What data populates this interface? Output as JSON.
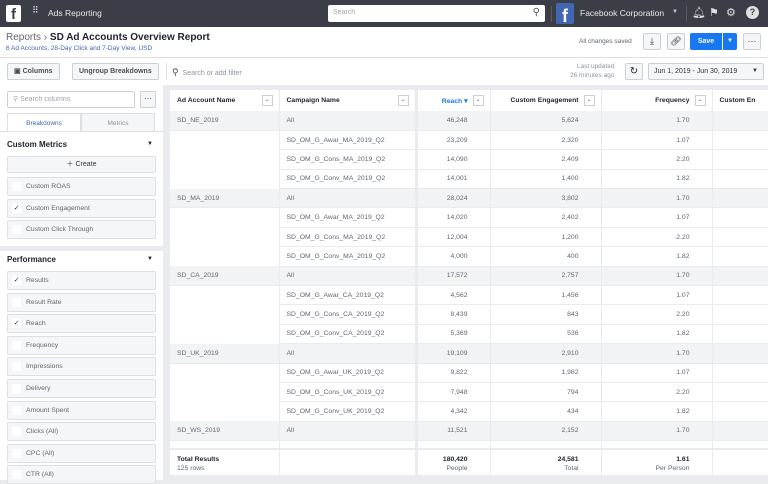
{
  "topbar": {
    "app_title": "Ads Reporting",
    "search_placeholder": "Search",
    "account": "Facebook Corporation"
  },
  "header": {
    "breadcrumb_root": "Reports",
    "title": "SD Ad Accounts Overview Report",
    "subtitle": "6 Ad Accounts, 28-Day Click and 7-Day View, USD",
    "status": "All changes saved",
    "save_label": "Save"
  },
  "toolbar": {
    "columns_label": "Columns",
    "ungroup_label": "Ungroup Breakdowns",
    "filter_placeholder": "Search or add filter",
    "last_updated_1": "Last updated",
    "last_updated_2": "26 minutes ago",
    "date_range": "Jun 1, 2019 - Jun 30, 2019"
  },
  "sidebar": {
    "search_placeholder": "Search columns",
    "tabs": [
      "Breakdowns",
      "Metrics"
    ],
    "active_tab": "Breakdowns",
    "custom_metrics": {
      "title": "Custom Metrics",
      "create_label": "Create",
      "items": [
        {
          "label": "Custom ROAS",
          "checked": false
        },
        {
          "label": "Custom Engagement",
          "checked": true
        },
        {
          "label": "Custom Click Through",
          "checked": false
        }
      ]
    },
    "performance": {
      "title": "Performance",
      "items": [
        {
          "label": "Results",
          "checked": true
        },
        {
          "label": "Result Rate",
          "checked": false
        },
        {
          "label": "Reach",
          "checked": true
        },
        {
          "label": "Frequency",
          "checked": false
        },
        {
          "label": "Impressions",
          "checked": false
        },
        {
          "label": "Delivery",
          "checked": false
        },
        {
          "label": "Amount Spent",
          "checked": false
        },
        {
          "label": "Clicks (All)",
          "checked": false
        },
        {
          "label": "CPC (All)",
          "checked": false
        },
        {
          "label": "CTR (All)",
          "checked": false
        }
      ]
    }
  },
  "table": {
    "columns": [
      "Ad Account Name",
      "Campaign Name",
      "Reach",
      "Custom Engagement",
      "Frequency",
      "Custom En"
    ],
    "sort_column": "Reach",
    "rows": [
      [
        "SD_NE_2019",
        "All",
        "46,248",
        "5,624",
        "1.70"
      ],
      [
        "",
        "SD_OM_G_Awar_MA_2019_Q2",
        "23,209",
        "2,320",
        "1.07"
      ],
      [
        "",
        "SD_OM_G_Cons_MA_2019_Q2",
        "14,090",
        "2,409",
        "2.20"
      ],
      [
        "",
        "SD_OM_G_Conv_MA_2019_Q2",
        "14,001",
        "1,400",
        "1.82"
      ],
      [
        "SD_MA_2019",
        "All",
        "28,024",
        "3,802",
        "1.70"
      ],
      [
        "",
        "SD_OM_G_Awar_MA_2019_Q2",
        "14,020",
        "2,402",
        "1.07"
      ],
      [
        "",
        "SD_OM_G_Cons_MA_2019_Q2",
        "12,004",
        "1,200",
        "2.20"
      ],
      [
        "",
        "SD_OM_G_Conv_MA_2019_Q2",
        "4,000",
        "400",
        "1.82"
      ],
      [
        "SD_CA_2019",
        "All",
        "17,572",
        "2,757",
        "1.70"
      ],
      [
        "",
        "SD_OM_G_Awar_CA_2019_Q2",
        "4,562",
        "1,456",
        "1.07"
      ],
      [
        "",
        "SD_OM_G_Cons_CA_2019_Q2",
        "8,439",
        "843",
        "2.20"
      ],
      [
        "",
        "SD_OM_G_Conv_CA_2019_Q2",
        "5,369",
        "536",
        "1.82"
      ],
      [
        "SD_UK_2019",
        "All",
        "19,109",
        "2,910",
        "1.70"
      ],
      [
        "",
        "SD_OM_G_Awar_UK_2019_Q2",
        "9,822",
        "1,982",
        "1.07"
      ],
      [
        "",
        "SD_OM_G_Cons_UK_2019_Q2",
        "7,948",
        "794",
        "2.20"
      ],
      [
        "",
        "SD_OM_G_Conv_UK_2019_Q2",
        "4,342",
        "434",
        "1.82"
      ],
      [
        "SD_WS_2019",
        "All",
        "11,521",
        "2,152",
        "1.70"
      ]
    ],
    "total": {
      "label": "Total Results",
      "rows": "125 rows",
      "reach": "180,420",
      "reach_unit": "People",
      "engagement": "24,581",
      "engagement_unit": "Total",
      "frequency": "1.61",
      "frequency_unit": "Per Person"
    }
  },
  "colors": {
    "topbar": "#3b3e46",
    "accent": "#1877f2",
    "link": "#4267b2"
  }
}
